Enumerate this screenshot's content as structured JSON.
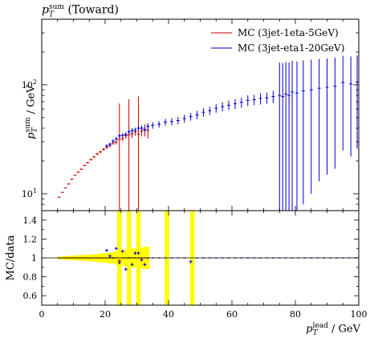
{
  "chart_data": [
    {
      "type": "scatter",
      "title": "p_T^sum (Toward)",
      "xlabel": "p_T^lead / GeV",
      "ylabel": "p_T^sum / GeV",
      "xlim": [
        0,
        100
      ],
      "ylim": [
        7,
        400
      ],
      "yscale": "log",
      "yticks": [
        10,
        100
      ],
      "ytick_labels": [
        "10^1",
        "10^2"
      ],
      "legend_position": "top-right",
      "series": [
        {
          "name": "MC (3jet-1eta-5GeV)",
          "color": "#cc0000",
          "x": [
            5.5,
            6.5,
            7.5,
            8.5,
            9.5,
            10.5,
            11.5,
            12.5,
            13.5,
            14.5,
            15.5,
            16.5,
            17.5,
            18.5,
            19.5,
            20.5,
            21.5,
            22.5,
            23.5,
            24.5,
            25.5,
            26.5,
            27.5,
            28.5,
            29.5,
            30.5,
            31.5,
            32.5,
            33.5
          ],
          "y": [
            9.3,
            10.3,
            11.3,
            12.3,
            13.6,
            14.8,
            15.8,
            16.8,
            18.2,
            19.3,
            20.6,
            21.8,
            23.2,
            24.2,
            25.6,
            26.6,
            27.6,
            29.2,
            29.8,
            31.5,
            32.2,
            34.2,
            34.8,
            35.5,
            37.0,
            35.2,
            37.5,
            38.5,
            38.0
          ],
          "err": [
            0.1,
            0.1,
            0.1,
            0.2,
            0.2,
            0.2,
            0.3,
            0.3,
            0.3,
            0.4,
            0.5,
            0.5,
            0.6,
            0.7,
            0.8,
            0.9,
            1.0,
            1.2,
            1.5,
            36,
            2.0,
            2.0,
            39,
            3.0,
            3.0,
            43,
            4.0,
            5.0,
            6.0
          ]
        },
        {
          "name": "MC (3jet-eta1-20GeV)",
          "color": "#0000cc",
          "x": [
            20.5,
            21.5,
            22.5,
            23.5,
            24.5,
            25.5,
            26.5,
            27.5,
            28.5,
            29.5,
            30.5,
            31.5,
            32.5,
            33.5,
            35,
            37,
            39,
            41,
            43,
            45,
            47,
            49,
            51,
            53,
            55,
            57,
            59,
            61,
            63,
            65,
            67,
            69,
            71,
            73,
            75,
            76,
            77,
            78,
            79,
            80.5,
            82.5,
            85,
            87.5,
            90,
            92.5,
            95,
            97.5,
            99.5
          ],
          "y": [
            27.5,
            28.5,
            30.5,
            32.0,
            34.0,
            34.5,
            35.0,
            37.0,
            38.0,
            38.5,
            40.0,
            40.0,
            39.0,
            41.5,
            42.5,
            43.5,
            45.5,
            46.0,
            47.0,
            49.0,
            51.0,
            53.0,
            56.0,
            58.0,
            61.0,
            63.0,
            65.0,
            67.0,
            69.0,
            72.0,
            73.0,
            75.0,
            76.0,
            78.0,
            80.0,
            78.0,
            82.0,
            80.0,
            86.0,
            84.0,
            88.0,
            90.0,
            93.0,
            95.0,
            97.0,
            105.0,
            102.0,
            106.0
          ],
          "err": [
            1.0,
            1.0,
            1.2,
            1.3,
            1.5,
            1.5,
            1.6,
            1.8,
            2.0,
            2.0,
            2.2,
            2.4,
            2.5,
            2.7,
            3.0,
            3.0,
            3.2,
            3.5,
            3.7,
            4.0,
            4.0,
            4.5,
            5.0,
            5.0,
            5.5,
            6.0,
            6.5,
            7.0,
            7.5,
            8.0,
            8.0,
            9.0,
            9.0,
            10.0,
            80,
            80,
            80,
            80,
            80,
            80,
            80,
            80,
            80,
            80,
            80,
            80,
            80,
            80
          ]
        }
      ]
    },
    {
      "type": "scatter",
      "xlabel": "p_T^lead / GeV",
      "ylabel": "MC/data",
      "xlim": [
        0,
        100
      ],
      "ylim": [
        0.5,
        1.5
      ],
      "yticks": [
        0.6,
        0.8,
        1,
        1.2,
        1.4
      ],
      "ytick_labels": [
        "0.6",
        "0.8",
        "1",
        "1.2",
        "1.4"
      ],
      "xticks": [
        0,
        20,
        40,
        60,
        80,
        100
      ],
      "band_color": "#ffff00",
      "band": {
        "x": [
          5.5,
          6.5,
          7.5,
          8.5,
          9.5,
          10.5,
          11.5,
          12.5,
          13.5,
          14.5,
          15.5,
          16.5,
          17.5,
          18.5,
          19.5,
          20.5,
          21.5,
          22.5,
          23.5,
          24.5,
          25.5,
          26.5,
          27.5,
          28.5,
          29.5,
          30.5,
          31.5,
          32.5,
          33.5,
          39.5,
          47.5
        ],
        "half_width": [
          0.5,
          0.5,
          0.5,
          0.5,
          0.5,
          0.5,
          0.5,
          0.5,
          0.5,
          0.5,
          0.5,
          0.5,
          0.5,
          0.5,
          0.5,
          0.5,
          0.5,
          0.5,
          0.5,
          0.7,
          0.5,
          0.5,
          0.7,
          0.5,
          0.5,
          0.7,
          0.5,
          0.5,
          0.5,
          0.7,
          0.7
        ],
        "err": [
          0.015,
          0.015,
          0.02,
          0.02,
          0.025,
          0.025,
          0.03,
          0.03,
          0.03,
          0.035,
          0.035,
          0.04,
          0.04,
          0.045,
          0.05,
          0.05,
          0.06,
          0.06,
          0.07,
          0.6,
          0.08,
          0.09,
          0.6,
          0.1,
          0.1,
          0.6,
          0.11,
          0.12,
          0.12,
          0.6,
          0.6
        ]
      },
      "series": [
        {
          "name": "MC (3jet-1eta-5GeV)",
          "color": "#cc0000",
          "x": [
            5.5,
            6.5,
            7.5,
            8.5,
            9.5,
            10.5,
            11.5,
            12.5,
            13.5,
            14.5,
            15.5,
            16.5,
            17.5,
            18.5,
            19.5,
            20.5,
            21.5,
            22.5,
            23.5,
            24.5,
            25.5,
            26.5,
            27.5,
            28.5,
            29.5,
            30.5,
            31.5,
            32.5,
            33.5
          ],
          "y": [
            1.0,
            1.0,
            1.0,
            1.0,
            1.0,
            1.0,
            1.0,
            1.0,
            1.0,
            1.0,
            1.0,
            1.0,
            1.0,
            1.0,
            1.0,
            1.0,
            1.0,
            1.0,
            1.0,
            0.97,
            1.0,
            1.0,
            1.0,
            1.0,
            1.0,
            1.0,
            1.0,
            1.0,
            1.0
          ]
        },
        {
          "name": "MC (3jet-eta1-20GeV)",
          "color": "#0000cc",
          "x": [
            20.5,
            21.5,
            22.5,
            23.5,
            24.5,
            25.5,
            26.5,
            27.5,
            28.5,
            29.5,
            30.5,
            31.5,
            32.5,
            33.5,
            35,
            37,
            39,
            41,
            43,
            45,
            47,
            49,
            51,
            53,
            55,
            57,
            59,
            61,
            63,
            65,
            67,
            69,
            71,
            73,
            75,
            77,
            79,
            81,
            83,
            85,
            87,
            89,
            91,
            93,
            95,
            97,
            99
          ],
          "y": [
            1.08,
            1.02,
            1.0,
            1.1,
            0.95,
            1.07,
            0.88,
            1.0,
            0.93,
            1.05,
            1.05,
            0.98,
            0.93,
            1.0,
            1.0,
            1.0,
            1.0,
            1.0,
            1.0,
            1.0,
            0.96,
            1.0,
            1.0,
            1.0,
            1.0,
            1.0,
            1.0,
            1.0,
            1.0,
            1.0,
            1.0,
            1.0,
            1.0,
            1.0,
            1.0,
            1.0,
            1.0,
            1.0,
            1.0,
            1.0,
            1.0,
            1.0,
            1.0,
            1.0,
            1.0,
            1.0,
            1.0
          ]
        }
      ]
    }
  ]
}
